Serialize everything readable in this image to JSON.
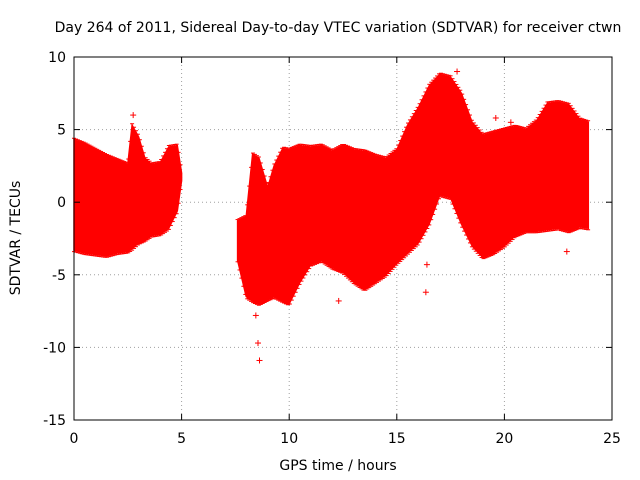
{
  "chart_data": {
    "type": "scatter",
    "title": "Day 264 of 2011, Sidereal Day-to-day VTEC variation (SDTVAR) for receiver ctwn",
    "xlabel": "GPS time / hours",
    "ylabel": "SDTVAR / TECUs",
    "xlim": [
      0,
      25
    ],
    "ylim": [
      -15,
      10
    ],
    "xticks": [
      0,
      5,
      10,
      15,
      20,
      25
    ],
    "yticks": [
      -15,
      -10,
      -5,
      0,
      5,
      10
    ],
    "grid": true,
    "series_color": "#ff0000",
    "envelope": [
      {
        "x": 0.0,
        "upper": 4.3,
        "lower": -3.3
      },
      {
        "x": 0.5,
        "upper": 4.0,
        "lower": -3.5
      },
      {
        "x": 1.0,
        "upper": 3.6,
        "lower": -3.6
      },
      {
        "x": 1.5,
        "upper": 3.2,
        "lower": -3.7
      },
      {
        "x": 2.0,
        "upper": 2.9,
        "lower": -3.5
      },
      {
        "x": 2.5,
        "upper": 2.6,
        "lower": -3.4
      },
      {
        "x": 2.7,
        "upper": 5.3,
        "lower": -3.2
      },
      {
        "x": 3.0,
        "upper": 4.5,
        "lower": -2.8
      },
      {
        "x": 3.3,
        "upper": 3.0,
        "lower": -2.6
      },
      {
        "x": 3.6,
        "upper": 2.6,
        "lower": -2.3
      },
      {
        "x": 4.0,
        "upper": 2.7,
        "lower": -2.2
      },
      {
        "x": 4.4,
        "upper": 3.8,
        "lower": -1.8
      },
      {
        "x": 4.8,
        "upper": 3.9,
        "lower": -0.6
      },
      {
        "x": 5.0,
        "upper": 2.0,
        "lower": 1.5
      },
      {
        "x": 7.6,
        "upper": -1.3,
        "lower": -4.0
      },
      {
        "x": 8.0,
        "upper": -1.0,
        "lower": -6.5
      },
      {
        "x": 8.3,
        "upper": 3.3,
        "lower": -6.8
      },
      {
        "x": 8.6,
        "upper": 3.0,
        "lower": -7.0
      },
      {
        "x": 9.0,
        "upper": 1.0,
        "lower": -6.7
      },
      {
        "x": 9.3,
        "upper": 2.5,
        "lower": -6.5
      },
      {
        "x": 9.7,
        "upper": 3.7,
        "lower": -6.8
      },
      {
        "x": 10.0,
        "upper": 3.6,
        "lower": -7.0
      },
      {
        "x": 10.5,
        "upper": 3.9,
        "lower": -5.5
      },
      {
        "x": 11.0,
        "upper": 3.8,
        "lower": -4.3
      },
      {
        "x": 11.5,
        "upper": 3.9,
        "lower": -4.0
      },
      {
        "x": 12.0,
        "upper": 3.5,
        "lower": -4.5
      },
      {
        "x": 12.5,
        "upper": 3.9,
        "lower": -4.8
      },
      {
        "x": 13.0,
        "upper": 3.6,
        "lower": -5.5
      },
      {
        "x": 13.5,
        "upper": 3.5,
        "lower": -6.0
      },
      {
        "x": 14.0,
        "upper": 3.2,
        "lower": -5.5
      },
      {
        "x": 14.5,
        "upper": 3.0,
        "lower": -5.0
      },
      {
        "x": 15.0,
        "upper": 3.6,
        "lower": -4.2
      },
      {
        "x": 15.5,
        "upper": 5.3,
        "lower": -3.5
      },
      {
        "x": 16.0,
        "upper": 6.5,
        "lower": -2.8
      },
      {
        "x": 16.5,
        "upper": 8.0,
        "lower": -1.5
      },
      {
        "x": 17.0,
        "upper": 8.8,
        "lower": 0.5
      },
      {
        "x": 17.5,
        "upper": 8.6,
        "lower": 0.3
      },
      {
        "x": 18.0,
        "upper": 7.5,
        "lower": -1.5
      },
      {
        "x": 18.5,
        "upper": 5.5,
        "lower": -3.0
      },
      {
        "x": 19.0,
        "upper": 4.6,
        "lower": -3.8
      },
      {
        "x": 19.5,
        "upper": 4.8,
        "lower": -3.5
      },
      {
        "x": 20.0,
        "upper": 5.0,
        "lower": -3.0
      },
      {
        "x": 20.5,
        "upper": 5.2,
        "lower": -2.3
      },
      {
        "x": 21.0,
        "upper": 5.0,
        "lower": -2.0
      },
      {
        "x": 21.5,
        "upper": 5.6,
        "lower": -2.0
      },
      {
        "x": 22.0,
        "upper": 6.8,
        "lower": -1.9
      },
      {
        "x": 22.5,
        "upper": 6.9,
        "lower": -1.8
      },
      {
        "x": 23.0,
        "upper": 6.7,
        "lower": -2.0
      },
      {
        "x": 23.5,
        "upper": 5.7,
        "lower": -1.7
      },
      {
        "x": 23.9,
        "upper": 5.5,
        "lower": -1.8
      }
    ],
    "outliers": [
      {
        "x": 2.75,
        "y": 6.0
      },
      {
        "x": 8.45,
        "y": -7.8
      },
      {
        "x": 8.55,
        "y": -9.7
      },
      {
        "x": 8.62,
        "y": -10.9
      },
      {
        "x": 12.3,
        "y": -6.8
      },
      {
        "x": 16.35,
        "y": -6.2
      },
      {
        "x": 16.4,
        "y": -4.3
      },
      {
        "x": 17.8,
        "y": 9.0
      },
      {
        "x": 19.6,
        "y": 5.8
      },
      {
        "x": 20.3,
        "y": 5.5
      },
      {
        "x": 22.9,
        "y": -3.4
      }
    ]
  }
}
